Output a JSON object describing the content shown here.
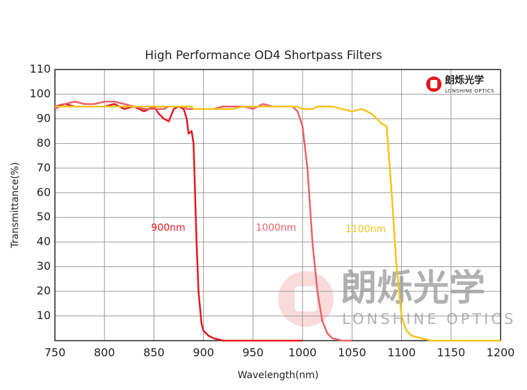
{
  "chart_data": {
    "type": "line",
    "title": "High Performance OD4 Shortpass Filters",
    "x_label": "Wavelength(nm)",
    "y_label": "Transmittance(%)",
    "x": [
      750,
      760,
      770,
      780,
      790,
      800,
      810,
      820,
      830,
      840,
      850,
      855,
      860,
      865,
      870,
      875,
      880,
      883,
      885,
      888,
      890,
      893,
      895,
      898,
      900,
      905,
      910,
      920,
      930,
      940,
      950,
      960,
      970,
      980,
      990,
      995,
      1000,
      1005,
      1010,
      1015,
      1020,
      1025,
      1030,
      1040,
      1050,
      1060,
      1070,
      1080,
      1085,
      1090,
      1095,
      1100,
      1105,
      1110,
      1120,
      1130,
      1150,
      1175,
      1200
    ],
    "series": [
      {
        "name": "900nm",
        "color": "#e3161d",
        "values": [
          95,
          96,
          95,
          95,
          95,
          95,
          96,
          94,
          95,
          93,
          95,
          92,
          90,
          89,
          94,
          95,
          94,
          90,
          84,
          85,
          80,
          40,
          20,
          7,
          4,
          2,
          1,
          0,
          0,
          0,
          0,
          0,
          0,
          0,
          0,
          0,
          0,
          null,
          null,
          null,
          null,
          null,
          null,
          null,
          null,
          null,
          null,
          null,
          null,
          null,
          null,
          null,
          null,
          null,
          null,
          null,
          null,
          null,
          null
        ]
      },
      {
        "name": "1000nm",
        "color": "#ea6068",
        "values": [
          94,
          96,
          97,
          96,
          96,
          97,
          97,
          96,
          95,
          94,
          94,
          94,
          94,
          95,
          95,
          95,
          95,
          94,
          94,
          94,
          94,
          94,
          94,
          94,
          94,
          94,
          94,
          95,
          95,
          95,
          94,
          96,
          95,
          95,
          95,
          93,
          87,
          70,
          40,
          20,
          8,
          3,
          1,
          0,
          0,
          null,
          null,
          null,
          null,
          null,
          null,
          null,
          null,
          null,
          null,
          null,
          null,
          null,
          null
        ]
      },
      {
        "name": "1100nm",
        "color": "#f3c41a",
        "values": [
          95,
          95,
          95,
          95,
          95,
          95,
          95,
          95,
          95,
          95,
          95,
          95,
          95,
          95,
          95,
          95,
          95,
          95,
          95,
          95,
          94,
          94,
          94,
          94,
          94,
          94,
          94,
          94,
          94,
          95,
          95,
          95,
          95,
          95,
          95,
          95,
          94,
          94,
          94,
          95,
          95,
          95,
          95,
          94,
          93,
          94,
          92,
          88,
          87,
          60,
          30,
          10,
          4,
          2,
          1,
          0,
          0,
          0,
          0
        ]
      }
    ],
    "xlim": [
      750,
      1200
    ],
    "xticks": [
      750,
      800,
      850,
      900,
      950,
      1000,
      1050,
      1100,
      1150,
      1200
    ],
    "ylim": [
      0,
      110
    ],
    "yticks": [
      10,
      20,
      30,
      40,
      50,
      60,
      70,
      80,
      90,
      100,
      110
    ],
    "grid": true
  },
  "logo": {
    "name": "朗烁光学",
    "tagline": "LONSHINE OPTICS"
  }
}
